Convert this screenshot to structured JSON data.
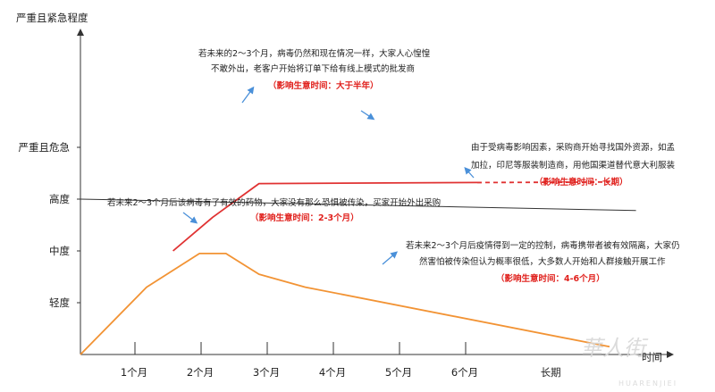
{
  "chart_data": {
    "type": "line",
    "y_axis_title": "严重且紧急程度",
    "x_axis_title": "时间",
    "y_levels": [
      "轻度",
      "中度",
      "高度",
      "严重且危急"
    ],
    "x_ticks": [
      "1个月",
      "2个月",
      "3个月",
      "4个月",
      "5个月",
      "6个月",
      "长期"
    ],
    "series": [
      {
        "color": "#e03232",
        "points": [
          [
            1.4,
            2.0
          ],
          [
            2.0,
            2.65
          ],
          [
            2.7,
            3.3
          ],
          [
            6.0,
            3.32
          ]
        ],
        "dashed_after": 6.0,
        "dashed_end": [
          8.0,
          3.33
        ]
      },
      {
        "color": "#f29334",
        "points": [
          [
            0,
            0
          ],
          [
            1.0,
            1.3
          ],
          [
            1.8,
            1.95
          ],
          [
            2.2,
            1.95
          ],
          [
            2.7,
            1.55
          ],
          [
            3.4,
            1.3
          ],
          [
            8.0,
            0.15
          ]
        ]
      },
      {
        "color": "#333333",
        "points": [
          [
            0,
            3.0
          ],
          [
            8.4,
            2.78
          ]
        ]
      }
    ],
    "annotations": [
      {
        "id": "a1",
        "lines": [
          "若未来的2～3个月，病毒仍然和现在情况一样，大家人心惶惶",
          "不敢外出，老客户开始将订单下给有线上模式的批发商"
        ],
        "impact": "（影响生意时间：大于半年）"
      },
      {
        "id": "a2",
        "lines": [
          "由于受病毒影响因素，采购商开始寻找国外资源，如孟",
          "加拉，印尼等服装制造商，用他国渠道替代意大利服装"
        ],
        "impact": "（影响生意时间：长期）"
      },
      {
        "id": "a3",
        "lines": [
          "若未来2～3个月后该病毒有了有效的药物，大家没有那么恐惧被传染，买家开始外出采购"
        ],
        "impact": "（影响生意时间：2-3个月）"
      },
      {
        "id": "a4",
        "lines": [
          "若未来2～3个月后疫情得到一定的控制，病毒携带者被有效隔离，大家仍",
          "然害怕被传染但认为概率很低，大多数人开始和人群接触开展工作"
        ],
        "impact": "（影响生意时间：4-6个月）"
      }
    ],
    "grid": false,
    "legend": "none"
  },
  "watermark": {
    "main": "華人街",
    "sub": "HUARENJIEI"
  }
}
